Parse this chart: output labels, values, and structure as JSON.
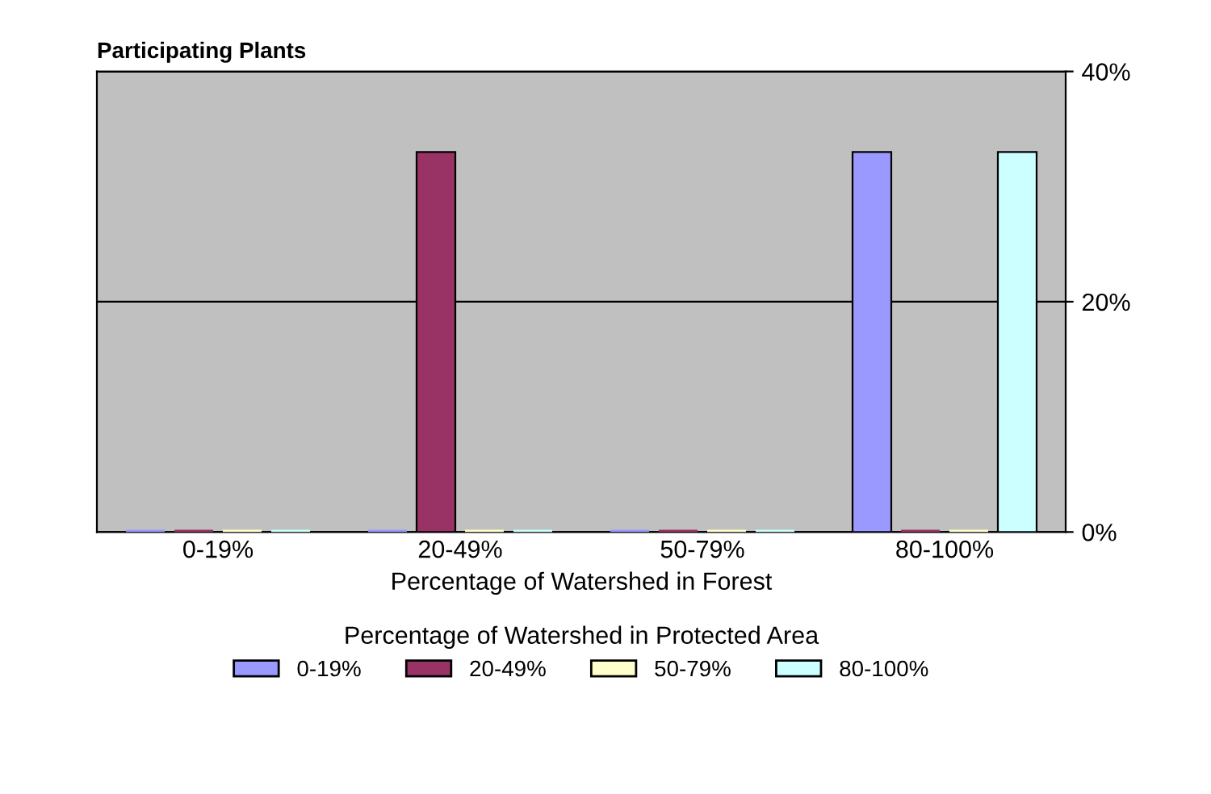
{
  "chart_data": {
    "type": "bar",
    "title": "Participating Plants",
    "xlabel": "Percentage of Watershed in Forest",
    "legend_title": "Percentage of Watershed in Protected Area",
    "categories": [
      "0-19%",
      "20-49%",
      "50-79%",
      "80-100%"
    ],
    "series": [
      {
        "name": "0-19%",
        "color": "#9999ff",
        "values": [
          0,
          0,
          0,
          33
        ]
      },
      {
        "name": "20-49%",
        "color": "#993366",
        "values": [
          0,
          33,
          0,
          0
        ]
      },
      {
        "name": "50-79%",
        "color": "#ffffcc",
        "values": [
          0,
          0,
          0,
          0
        ]
      },
      {
        "name": "80-100%",
        "color": "#ccffff",
        "values": [
          0,
          0,
          0,
          33
        ]
      }
    ],
    "ylim": [
      0,
      40
    ],
    "yticks": [
      {
        "value": 0,
        "label": "0%"
      },
      {
        "value": 20,
        "label": "20%"
      },
      {
        "value": 40,
        "label": "40%"
      }
    ],
    "grid": "y",
    "legend": "bottom"
  }
}
